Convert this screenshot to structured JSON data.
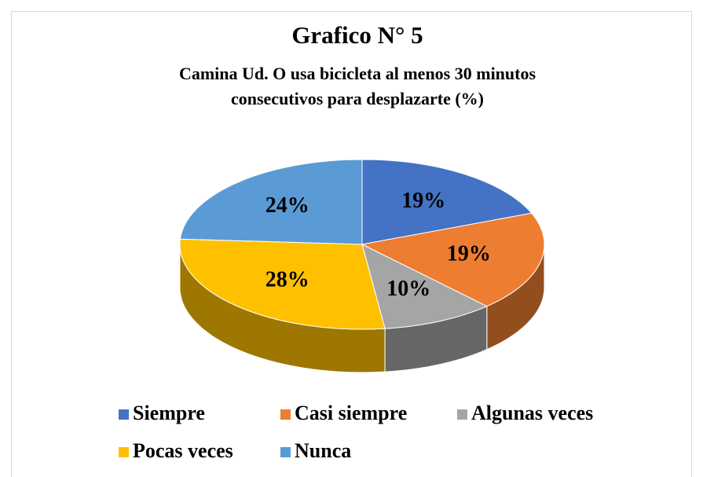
{
  "chart_data": {
    "type": "pie",
    "title": "Grafico N° 5",
    "subtitle": [
      "Camina Ud. O usa bicicleta al menos 30 minutos",
      "consecutivos para desplazarte (%)"
    ],
    "categories": [
      "Siempre",
      "Casi siempre",
      "Algunas veces",
      "Pocas veces",
      "Nunca"
    ],
    "values": [
      19,
      19,
      10,
      28,
      24
    ],
    "value_labels": [
      "19%",
      "19%",
      "10%",
      "28%",
      "24%"
    ],
    "colors": [
      "#4472c4",
      "#ed7d31",
      "#a5a5a5",
      "#ffc000",
      "#5b9bd5"
    ],
    "legend": "bottom"
  }
}
